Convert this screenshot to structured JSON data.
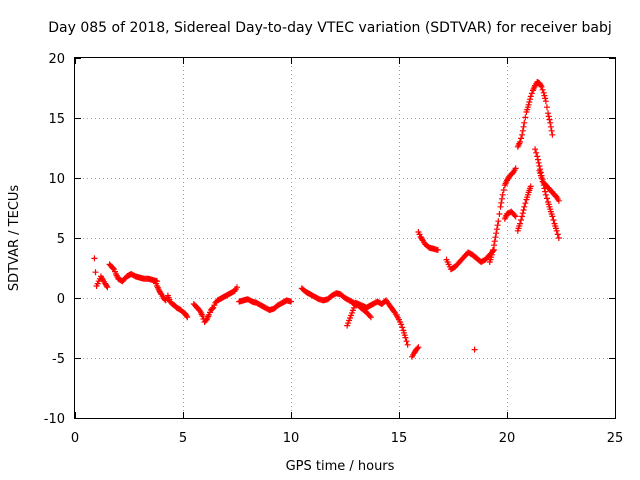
{
  "chart_data": {
    "type": "scatter",
    "title": "Day 085 of 2018, Sidereal Day-to-day VTEC variation (SDTVAR) for receiver babj",
    "xlabel": "GPS time / hours",
    "ylabel": "SDTVAR / TECUs",
    "xlim": [
      0,
      25
    ],
    "ylim": [
      -10,
      20
    ],
    "xticks": [
      0,
      5,
      10,
      15,
      20,
      25
    ],
    "yticks": [
      -10,
      -5,
      0,
      5,
      10,
      15,
      20
    ],
    "xtick_labels": [
      "0",
      "5",
      "10",
      "15",
      "20",
      "25"
    ],
    "ytick_labels": [
      "-10",
      "-5",
      "0",
      "5",
      "10",
      "15",
      "20"
    ],
    "grid": true,
    "marker": "+",
    "color": "#ff0000",
    "segments": [
      {
        "x": [
          0.9,
          1.0,
          1.2,
          1.4,
          1.5
        ],
        "y": [
          3.3,
          1.0,
          1.8,
          1.2,
          0.9
        ]
      },
      {
        "x": [
          1.6,
          1.7,
          1.8,
          1.9,
          2.0,
          2.2,
          2.4,
          2.6,
          2.8,
          3.0,
          3.2,
          3.4,
          3.6,
          3.8
        ],
        "y": [
          2.8,
          2.6,
          2.4,
          2.0,
          1.6,
          1.4,
          1.8,
          2.0,
          1.8,
          1.7,
          1.6,
          1.6,
          1.5,
          1.4
        ]
      },
      {
        "x": [
          3.7,
          3.8,
          3.9,
          4.0,
          4.1,
          4.2,
          4.3,
          4.4,
          4.5,
          4.6,
          4.7,
          4.8,
          4.9,
          5.0,
          5.1,
          5.2
        ],
        "y": [
          1.4,
          1.0,
          0.6,
          0.3,
          0.0,
          -0.2,
          0.2,
          -0.3,
          -0.5,
          -0.6,
          -0.8,
          -0.9,
          -1.0,
          -1.2,
          -1.3,
          -1.6
        ]
      },
      {
        "x": [
          5.5,
          5.6,
          5.7,
          5.8,
          5.9,
          6.0,
          6.1,
          6.2,
          6.3,
          6.4,
          6.5,
          6.6,
          6.8,
          7.0,
          7.2,
          7.4,
          7.5
        ],
        "y": [
          -0.5,
          -0.7,
          -0.9,
          -1.1,
          -1.5,
          -2.0,
          -1.8,
          -1.4,
          -1.0,
          -0.8,
          -0.4,
          -0.2,
          0.0,
          0.2,
          0.4,
          0.6,
          0.9
        ]
      },
      {
        "x": [
          7.6,
          7.8,
          8.0,
          8.2,
          8.4,
          8.6,
          8.8,
          9.0,
          9.2,
          9.4,
          9.6,
          9.8,
          10.0
        ],
        "y": [
          -0.3,
          -0.2,
          -0.1,
          -0.3,
          -0.4,
          -0.6,
          -0.8,
          -1.0,
          -0.9,
          -0.6,
          -0.4,
          -0.2,
          -0.3
        ]
      },
      {
        "x": [
          10.5,
          10.7,
          10.9,
          11.1,
          11.3,
          11.5,
          11.7,
          11.9,
          12.1,
          12.3,
          12.5,
          12.7,
          12.9,
          13.1,
          13.3,
          13.5,
          13.7
        ],
        "y": [
          0.8,
          0.5,
          0.3,
          0.1,
          -0.1,
          -0.2,
          -0.1,
          0.2,
          0.4,
          0.3,
          0.0,
          -0.2,
          -0.4,
          -0.6,
          -0.9,
          -1.2,
          -1.6
        ]
      },
      {
        "x": [
          12.6,
          13.0,
          13.5,
          13.8,
          14.0,
          14.2,
          14.4,
          14.6,
          14.8,
          15.0,
          15.1,
          15.2,
          15.3,
          15.4
        ],
        "y": [
          -2.3,
          -0.4,
          -0.8,
          -0.5,
          -0.3,
          -0.5,
          -0.2,
          -0.7,
          -1.2,
          -1.8,
          -2.2,
          -2.7,
          -3.3,
          -3.9
        ]
      },
      {
        "x": [
          15.6,
          15.7,
          15.8,
          15.9
        ],
        "y": [
          -4.9,
          -4.6,
          -4.3,
          -4.1
        ]
      },
      {
        "x": [
          15.9,
          16.0,
          16.1,
          16.2,
          16.4,
          16.6,
          16.8
        ],
        "y": [
          5.5,
          5.1,
          4.8,
          4.5,
          4.2,
          4.1,
          4.0
        ]
      },
      {
        "x": [
          17.2,
          17.4,
          17.6,
          17.8,
          18.0,
          18.2,
          18.4,
          18.6,
          18.8,
          19.0,
          19.2,
          19.4
        ],
        "y": [
          3.2,
          2.4,
          2.6,
          3.0,
          3.4,
          3.8,
          3.6,
          3.3,
          3.0,
          3.2,
          3.6,
          4.0
        ]
      },
      {
        "x": [
          18.5
        ],
        "y": [
          -4.3
        ]
      },
      {
        "x": [
          19.2,
          19.3,
          19.4,
          19.5,
          19.6,
          19.7,
          19.8,
          19.9,
          20.0,
          20.1,
          20.2,
          20.3,
          20.4
        ],
        "y": [
          3.0,
          3.6,
          4.4,
          5.4,
          6.4,
          7.6,
          8.6,
          9.4,
          9.8,
          10.1,
          10.3,
          10.5,
          10.8
        ]
      },
      {
        "x": [
          19.9,
          20.0,
          20.2,
          20.4
        ],
        "y": [
          6.6,
          7.0,
          7.2,
          6.8
        ]
      },
      {
        "x": [
          20.5,
          20.6,
          20.7,
          20.8,
          20.9,
          21.0,
          21.1
        ],
        "y": [
          5.6,
          6.2,
          6.8,
          7.6,
          8.2,
          8.8,
          9.3
        ]
      },
      {
        "x": [
          20.5,
          20.6,
          20.7,
          20.8,
          20.9,
          21.0,
          21.1,
          21.2,
          21.3,
          21.4,
          21.5,
          21.6,
          21.7,
          21.8,
          21.9,
          22.0,
          22.1
        ],
        "y": [
          12.6,
          13.0,
          13.6,
          14.6,
          15.5,
          16.1,
          16.8,
          17.3,
          17.7,
          18.0,
          17.9,
          17.6,
          17.1,
          16.4,
          15.4,
          14.6,
          13.6
        ]
      },
      {
        "x": [
          21.3,
          21.4,
          21.5,
          21.6,
          21.7,
          21.8,
          21.9,
          22.0,
          22.1,
          22.2,
          22.3,
          22.4
        ],
        "y": [
          12.4,
          11.8,
          11.0,
          10.2,
          9.6,
          9.4,
          9.2,
          9.0,
          8.8,
          8.6,
          8.4,
          8.1
        ]
      },
      {
        "x": [
          21.5,
          21.6,
          21.7,
          21.8,
          21.9,
          22.0,
          22.1,
          22.2,
          22.3,
          22.4
        ],
        "y": [
          10.6,
          10.0,
          9.4,
          8.6,
          8.0,
          7.4,
          6.8,
          6.2,
          5.6,
          5.0
        ]
      }
    ]
  }
}
